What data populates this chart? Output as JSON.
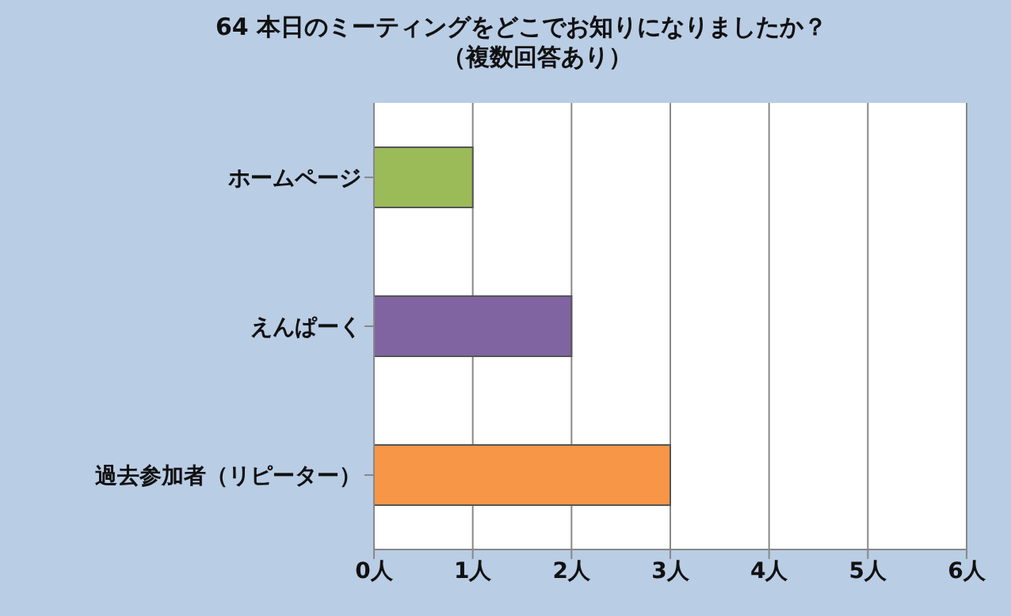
{
  "chart_data": {
    "type": "bar",
    "orientation": "horizontal",
    "title": "64 本日のミーティングをどこでお知りになりましたか？",
    "subtitle": "（複数回答あり）",
    "categories": [
      "ホームページ",
      "えんぱーく",
      "過去参加者（リピーター）"
    ],
    "values": [
      1,
      2,
      3
    ],
    "colors": [
      "#9bbb59",
      "#8064a2",
      "#f79646"
    ],
    "xlim": [
      0,
      6
    ],
    "xticks": [
      {
        "value": 0,
        "label": "0人"
      },
      {
        "value": 1,
        "label": "1人"
      },
      {
        "value": 2,
        "label": "2人"
      },
      {
        "value": 3,
        "label": "3人"
      },
      {
        "value": 4,
        "label": "4人"
      },
      {
        "value": 5,
        "label": "5人"
      },
      {
        "value": 6,
        "label": "6人"
      }
    ],
    "grid": "x",
    "legend": false
  }
}
